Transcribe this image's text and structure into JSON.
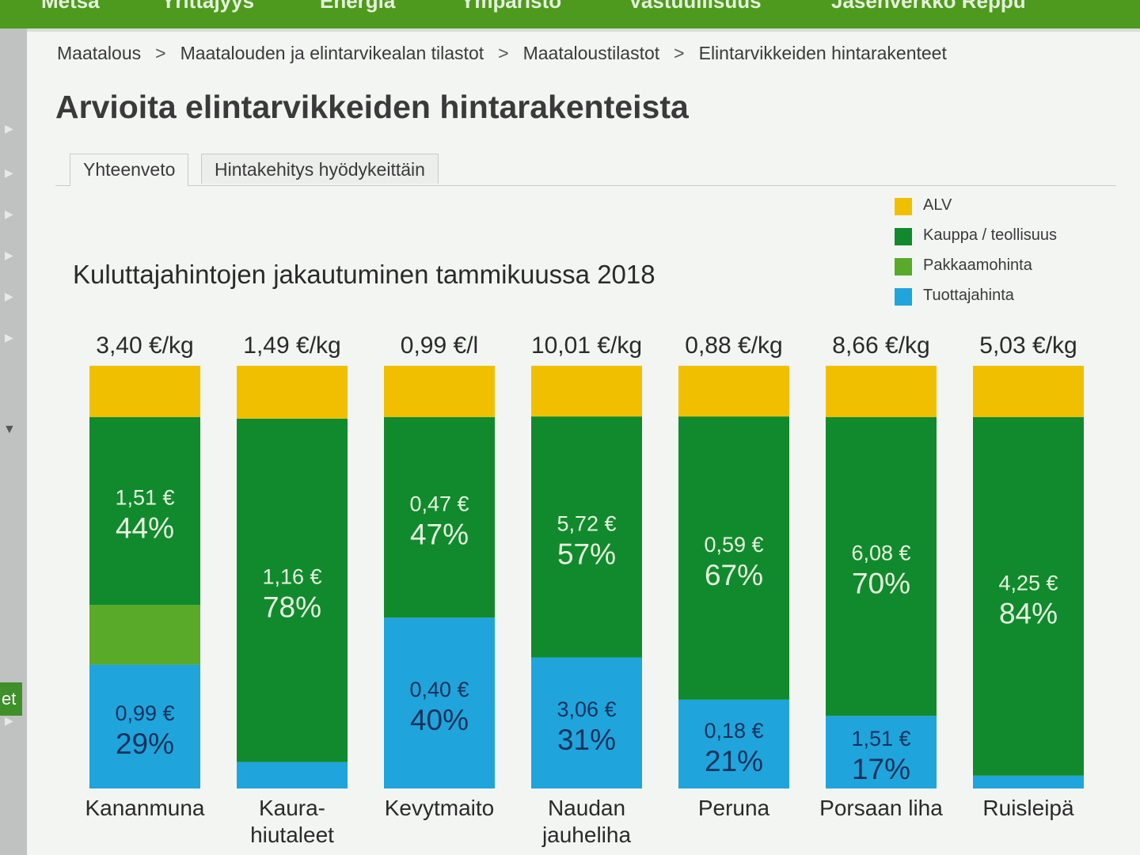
{
  "top_nav": {
    "items": [
      "Metsä",
      "Yrittäjyys",
      "Energia",
      "Ympäristö",
      "Vastuullisuus",
      "Jäsenverkko Reppu"
    ]
  },
  "side_label": "et",
  "breadcrumb": {
    "items": [
      "Maatalous",
      "Maatalouden ja elintarvikealan tilastot",
      "Maataloustilastot",
      "Elintarvikkeiden hintarakenteet"
    ],
    "separator": ">"
  },
  "page_title": "Arvioita elintarvikkeiden hintarakenteista",
  "tabs": [
    {
      "label": "Yhteenveto",
      "active": true
    },
    {
      "label": "Hintakehitys hyödykeittäin",
      "active": false
    }
  ],
  "colors": {
    "alv": "#f0c000",
    "kauppa": "#118a2d",
    "pakkaamo": "#5aaa2a",
    "tuottaja": "#1fa5dc"
  },
  "chart_data": {
    "type": "bar",
    "stacked": true,
    "title": "Kuluttajahintojen jakautuminen tammikuussa 2018",
    "legend_position": "top-right",
    "legend": [
      "ALV",
      "Kauppa / teollisuus",
      "Pakkaamohinta",
      "Tuottajahinta"
    ],
    "categories": [
      "Kananmuna",
      "Kaura-hiutaleet",
      "Kevytmaito",
      "Naudan jauheliha",
      "Peruna",
      "Porsaan liha",
      "Ruisleipä"
    ],
    "category_lines": [
      [
        "Kananmuna"
      ],
      [
        "Kaura-",
        "hiutaleet"
      ],
      [
        "Kevytmaito"
      ],
      [
        "Naudan",
        "jauheliha"
      ],
      [
        "Peruna"
      ],
      [
        "Porsaan liha"
      ],
      [
        "Ruisleipä"
      ]
    ],
    "totals": [
      "3,40 €/kg",
      "1,49 €/kg",
      "0,99 €/l",
      "10,01 €/kg",
      "0,88 €/kg",
      "8,66 €/kg",
      "5,03 €/kg"
    ],
    "series": [
      {
        "name": "Tuottajahinta",
        "values": [
          29,
          6,
          40,
          31,
          21,
          17,
          3
        ],
        "labels": [
          "0,99 €",
          "",
          "0,40 €",
          "3,06 €",
          "0,18 €",
          "1,51 €",
          ""
        ],
        "pct_labels": [
          "29%",
          "",
          "40%",
          "31%",
          "21%",
          "17%",
          ""
        ]
      },
      {
        "name": "Pakkaamohinta",
        "values": [
          14,
          0,
          0,
          0,
          0,
          0,
          0
        ],
        "labels": [
          "",
          "",
          "",
          "",
          "",
          "",
          ""
        ],
        "pct_labels": [
          "",
          "",
          "",
          "",
          "",
          "",
          ""
        ]
      },
      {
        "name": "Kauppa / teollisuus",
        "values": [
          44,
          78,
          47,
          57,
          67,
          70,
          84
        ],
        "labels": [
          "1,51 €",
          "1,16 €",
          "0,47 €",
          "5,72 €",
          "0,59 €",
          "6,08 €",
          "4,25 €"
        ],
        "pct_labels": [
          "44%",
          "78%",
          "47%",
          "57%",
          "67%",
          "70%",
          "84%"
        ]
      },
      {
        "name": "ALV",
        "values": [
          12,
          12,
          12,
          12,
          12,
          12,
          12
        ],
        "labels": [
          "",
          "",
          "",
          "",
          "",
          "",
          ""
        ],
        "pct_labels": [
          "",
          "",
          "",
          "",
          "",
          "",
          ""
        ]
      }
    ],
    "ylim": [
      0,
      100
    ]
  }
}
